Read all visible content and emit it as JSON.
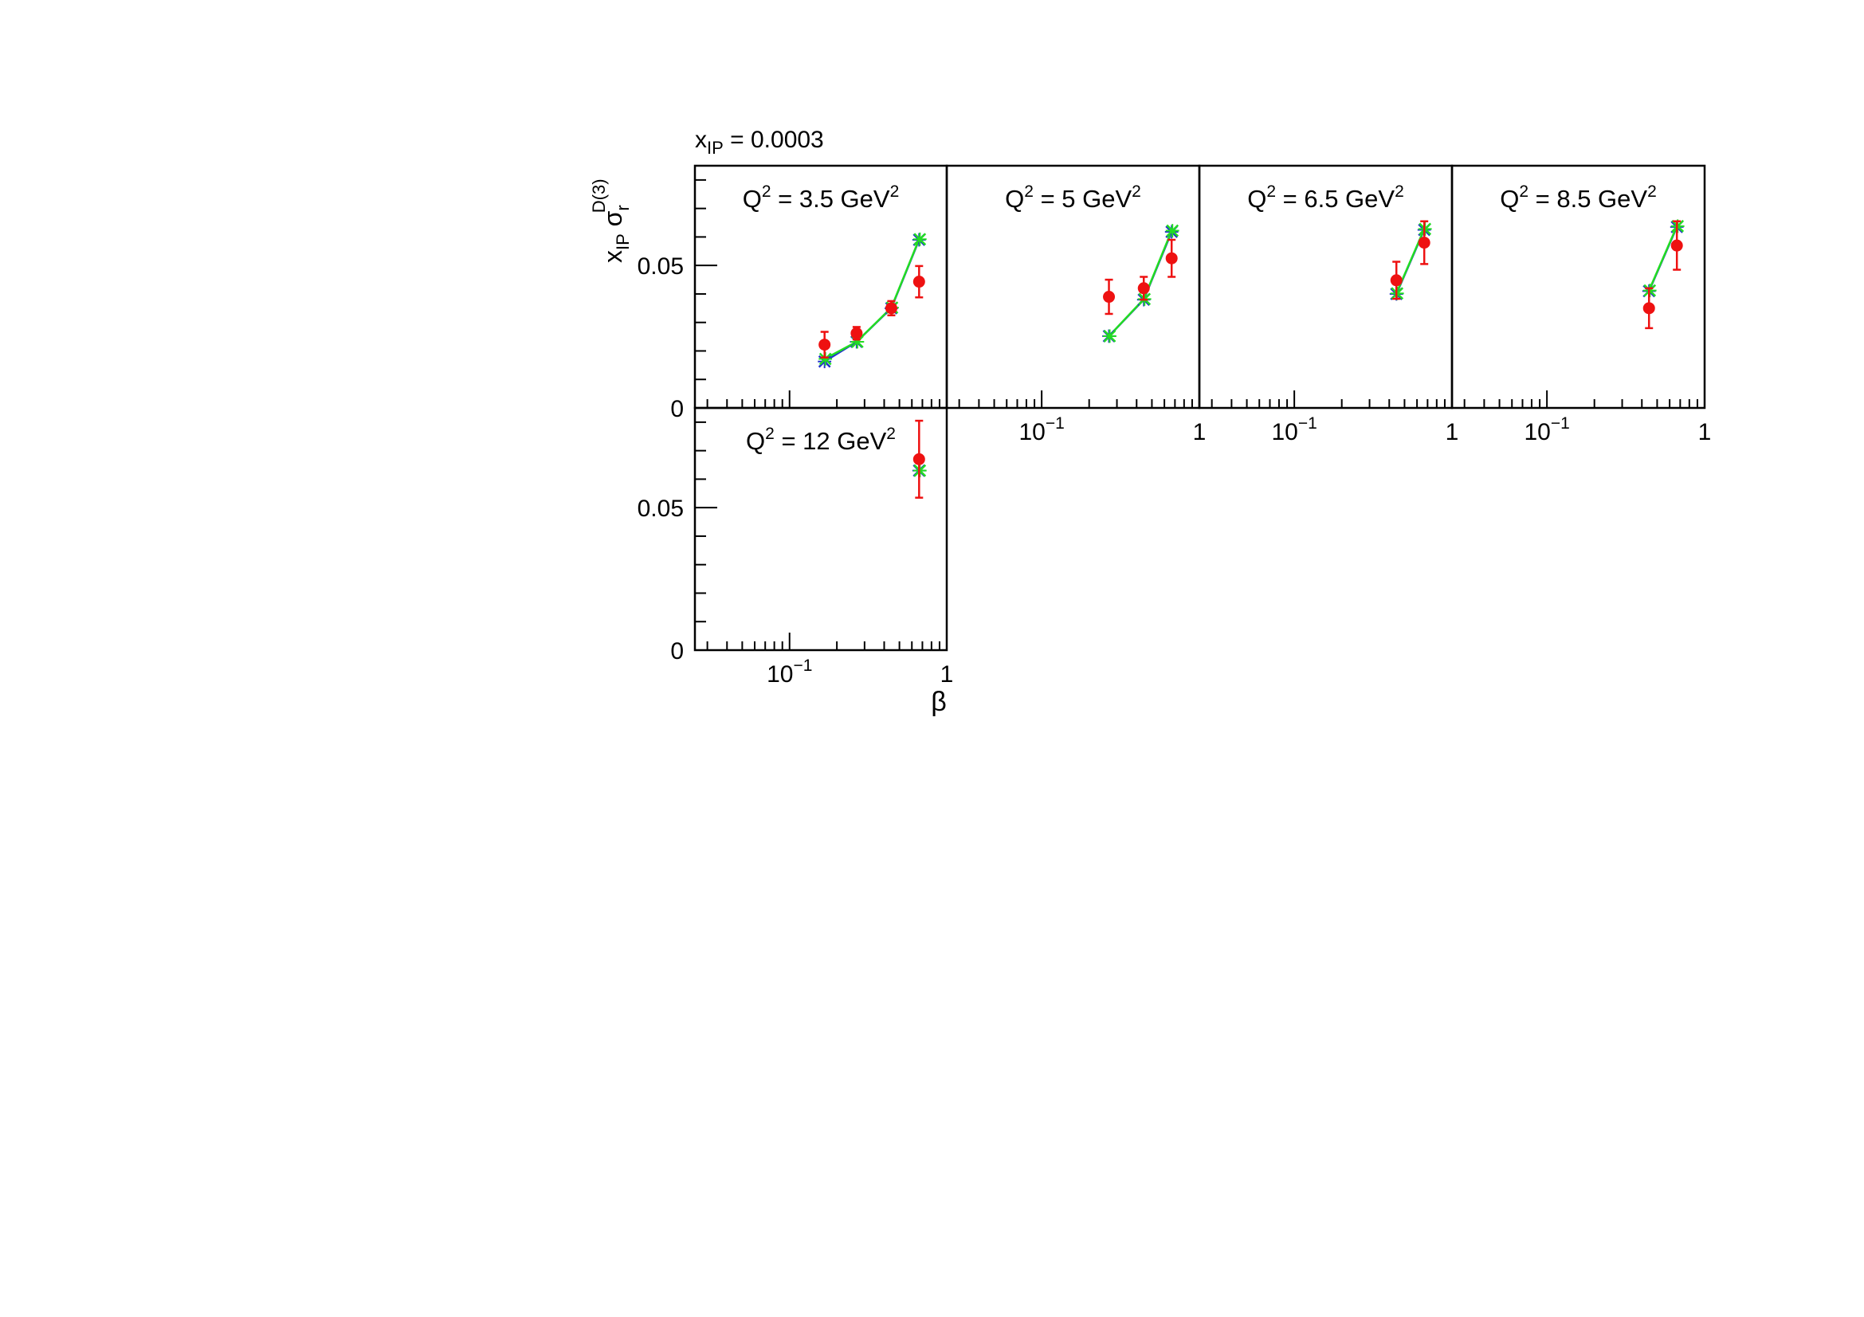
{
  "figure": {
    "xip_label": {
      "main": "x",
      "sub": "IP",
      "rest": " = 0.0003"
    },
    "ylabel": {
      "x": "x",
      "xsub": "IP",
      "sigma": "σ",
      "sigsub": "r",
      "sigsup": "D(3)"
    },
    "xlabel": "β"
  },
  "chart_data": [
    {
      "type": "scatter",
      "title": {
        "q": "Q",
        "sup": "2",
        "mid": " = 3.5 GeV",
        "sup2": "2"
      },
      "xscale": "log",
      "xlim": [
        0.025,
        1
      ],
      "ylim": [
        0,
        0.085
      ],
      "yticks": [
        {
          "v": 0,
          "label": "0"
        },
        {
          "v": 0.05,
          "label": "0.05"
        }
      ],
      "xticks": [],
      "series": [
        {
          "role": "data",
          "x": [
            0.167,
            0.267,
            0.444,
            0.667
          ],
          "y": [
            0.0222,
            0.0262,
            0.035,
            0.0443
          ],
          "err": [
            0.0045,
            0.0022,
            0.0025,
            0.0055
          ]
        },
        {
          "role": "fit-blue",
          "x": [
            0.167,
            0.267,
            0.444,
            0.667
          ],
          "y": [
            0.0163,
            0.0232,
            0.035,
            0.059
          ]
        },
        {
          "role": "fit-green",
          "x": [
            0.167,
            0.267,
            0.444,
            0.667
          ],
          "y": [
            0.0172,
            0.0232,
            0.0352,
            0.0592
          ]
        }
      ]
    },
    {
      "type": "scatter",
      "title": {
        "q": "Q",
        "sup": "2",
        "mid": " = 5 GeV",
        "sup2": "2"
      },
      "xscale": "log",
      "xlim": [
        0.025,
        1
      ],
      "ylim": [
        0,
        0.085
      ],
      "yticks": [],
      "xticks": [
        {
          "v": 0.1,
          "base": "10",
          "exp": "−1"
        },
        {
          "v": 1,
          "base": "1",
          "exp": ""
        }
      ],
      "series": [
        {
          "role": "data",
          "x": [
            0.267,
            0.444,
            0.667
          ],
          "y": [
            0.039,
            0.042,
            0.0525
          ],
          "err": [
            0.006,
            0.004,
            0.0065
          ]
        },
        {
          "role": "fit-blue",
          "x": [
            0.267,
            0.444,
            0.667
          ],
          "y": [
            0.0252,
            0.038,
            0.0618
          ]
        },
        {
          "role": "fit-green",
          "x": [
            0.267,
            0.444,
            0.667
          ],
          "y": [
            0.0252,
            0.0382,
            0.0622
          ]
        }
      ]
    },
    {
      "type": "scatter",
      "title": {
        "q": "Q",
        "sup": "2",
        "mid": " = 6.5 GeV",
        "sup2": "2"
      },
      "xscale": "log",
      "xlim": [
        0.025,
        1
      ],
      "ylim": [
        0,
        0.085
      ],
      "yticks": [],
      "xticks": [
        {
          "v": 0.1,
          "base": "10",
          "exp": "−1"
        },
        {
          "v": 1,
          "base": "1",
          "exp": ""
        }
      ],
      "series": [
        {
          "role": "data",
          "x": [
            0.444,
            0.667
          ],
          "y": [
            0.0448,
            0.058
          ],
          "err": [
            0.0065,
            0.0075
          ]
        },
        {
          "role": "fit-blue",
          "x": [
            0.444,
            0.667
          ],
          "y": [
            0.04,
            0.0625
          ]
        },
        {
          "role": "fit-green",
          "x": [
            0.444,
            0.667
          ],
          "y": [
            0.0402,
            0.0628
          ]
        }
      ]
    },
    {
      "type": "scatter",
      "title": {
        "q": "Q",
        "sup": "2",
        "mid": " = 8.5 GeV",
        "sup2": "2"
      },
      "xscale": "log",
      "xlim": [
        0.025,
        1
      ],
      "ylim": [
        0,
        0.085
      ],
      "yticks": [],
      "xticks": [
        {
          "v": 0.1,
          "base": "10",
          "exp": "−1"
        },
        {
          "v": 1,
          "base": "1",
          "exp": ""
        }
      ],
      "series": [
        {
          "role": "data",
          "x": [
            0.444,
            0.667
          ],
          "y": [
            0.035,
            0.057
          ],
          "err": [
            0.007,
            0.0085
          ]
        },
        {
          "role": "fit-blue",
          "x": [
            0.444,
            0.667
          ],
          "y": [
            0.041,
            0.0635
          ]
        },
        {
          "role": "fit-green",
          "x": [
            0.444,
            0.667
          ],
          "y": [
            0.0412,
            0.0638
          ]
        }
      ]
    },
    {
      "type": "scatter",
      "title": {
        "q": "Q",
        "sup": "2",
        "mid": " = 12 GeV",
        "sup2": "2"
      },
      "xscale": "log",
      "xlim": [
        0.025,
        1
      ],
      "ylim": [
        0,
        0.085
      ],
      "yticks": [
        {
          "v": 0,
          "label": "0"
        },
        {
          "v": 0.05,
          "label": "0.05"
        }
      ],
      "xticks": [
        {
          "v": 0.1,
          "base": "10",
          "exp": "−1"
        },
        {
          "v": 1,
          "base": "1",
          "exp": ""
        }
      ],
      "series": [
        {
          "role": "data",
          "x": [
            0.667
          ],
          "y": [
            0.067
          ],
          "err": [
            0.0135
          ]
        },
        {
          "role": "fit-blue",
          "x": [
            0.667
          ],
          "y": [
            0.063
          ]
        },
        {
          "role": "fit-green",
          "x": [
            0.667
          ],
          "y": [
            0.063
          ]
        }
      ]
    }
  ],
  "colors": {
    "data": "#ee1111",
    "fit_blue": "#2233cc",
    "fit_green": "#22dd22",
    "axis": "#000000"
  }
}
